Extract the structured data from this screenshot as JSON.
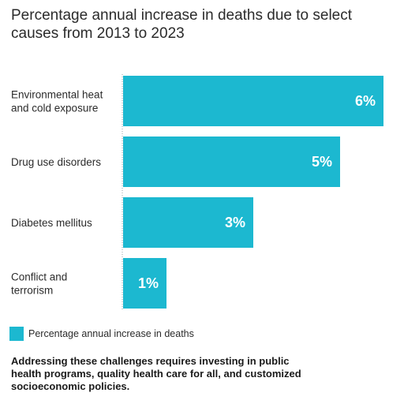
{
  "chart_data": {
    "type": "bar",
    "orientation": "horizontal",
    "title": "Percentage annual increase in deaths due to select causes from 2013 to 2023",
    "categories": [
      [
        "Environmental heat",
        "and cold exposure"
      ],
      [
        "Drug use disorders"
      ],
      [
        "Diabetes mellitus"
      ],
      [
        "Conflict and",
        "terrorism"
      ]
    ],
    "series": [
      {
        "name": "Percentage annual increase in deaths",
        "values": [
          6,
          5,
          3,
          1
        ]
      }
    ],
    "value_labels": [
      "6%",
      "5%",
      "3%",
      "1%"
    ],
    "xlim": [
      0,
      6
    ],
    "grid": false,
    "legend_position": "bottom-left",
    "colors": {
      "bar": "#1cb8d0",
      "value_label": "#ffffff",
      "text": "#2b2b2b"
    }
  },
  "footnote": "Addressing these challenges requires investing in public health programs, quality health care for all, and customized socioeconomic policies."
}
